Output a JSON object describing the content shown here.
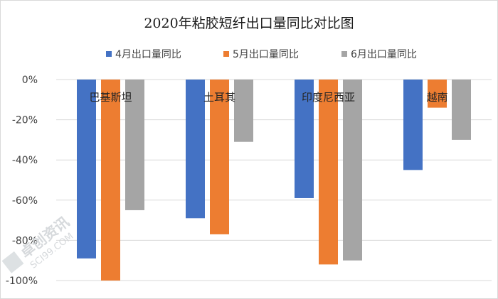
{
  "chart_data": {
    "type": "bar",
    "title": "2020年粘胶短纤出口量同比对比图",
    "categories": [
      "巴基斯坦",
      "土耳其",
      "印度尼西亚",
      "越南"
    ],
    "series": [
      {
        "name": "4月出口量同比",
        "color": "#4472c4",
        "values": [
          -89,
          -69,
          -59,
          -45
        ]
      },
      {
        "name": "5月出口量同比",
        "color": "#ed7d31",
        "values": [
          -100,
          -77,
          -92,
          -14
        ]
      },
      {
        "name": "6月出口量同比",
        "color": "#a5a5a5",
        "values": [
          -65,
          -31,
          -90,
          -30
        ]
      }
    ],
    "yticks": [
      "0%",
      "-20%",
      "-40%",
      "-60%",
      "-80%",
      "-100%"
    ],
    "ytick_values": [
      0,
      -20,
      -40,
      -60,
      -80,
      -100
    ],
    "ylim": [
      -100,
      0
    ],
    "grid": true,
    "legend_position": "top",
    "xlabel": "",
    "ylabel": ""
  },
  "watermark": {
    "text": "卓创资讯",
    "subtext": "SCI99.COM"
  }
}
